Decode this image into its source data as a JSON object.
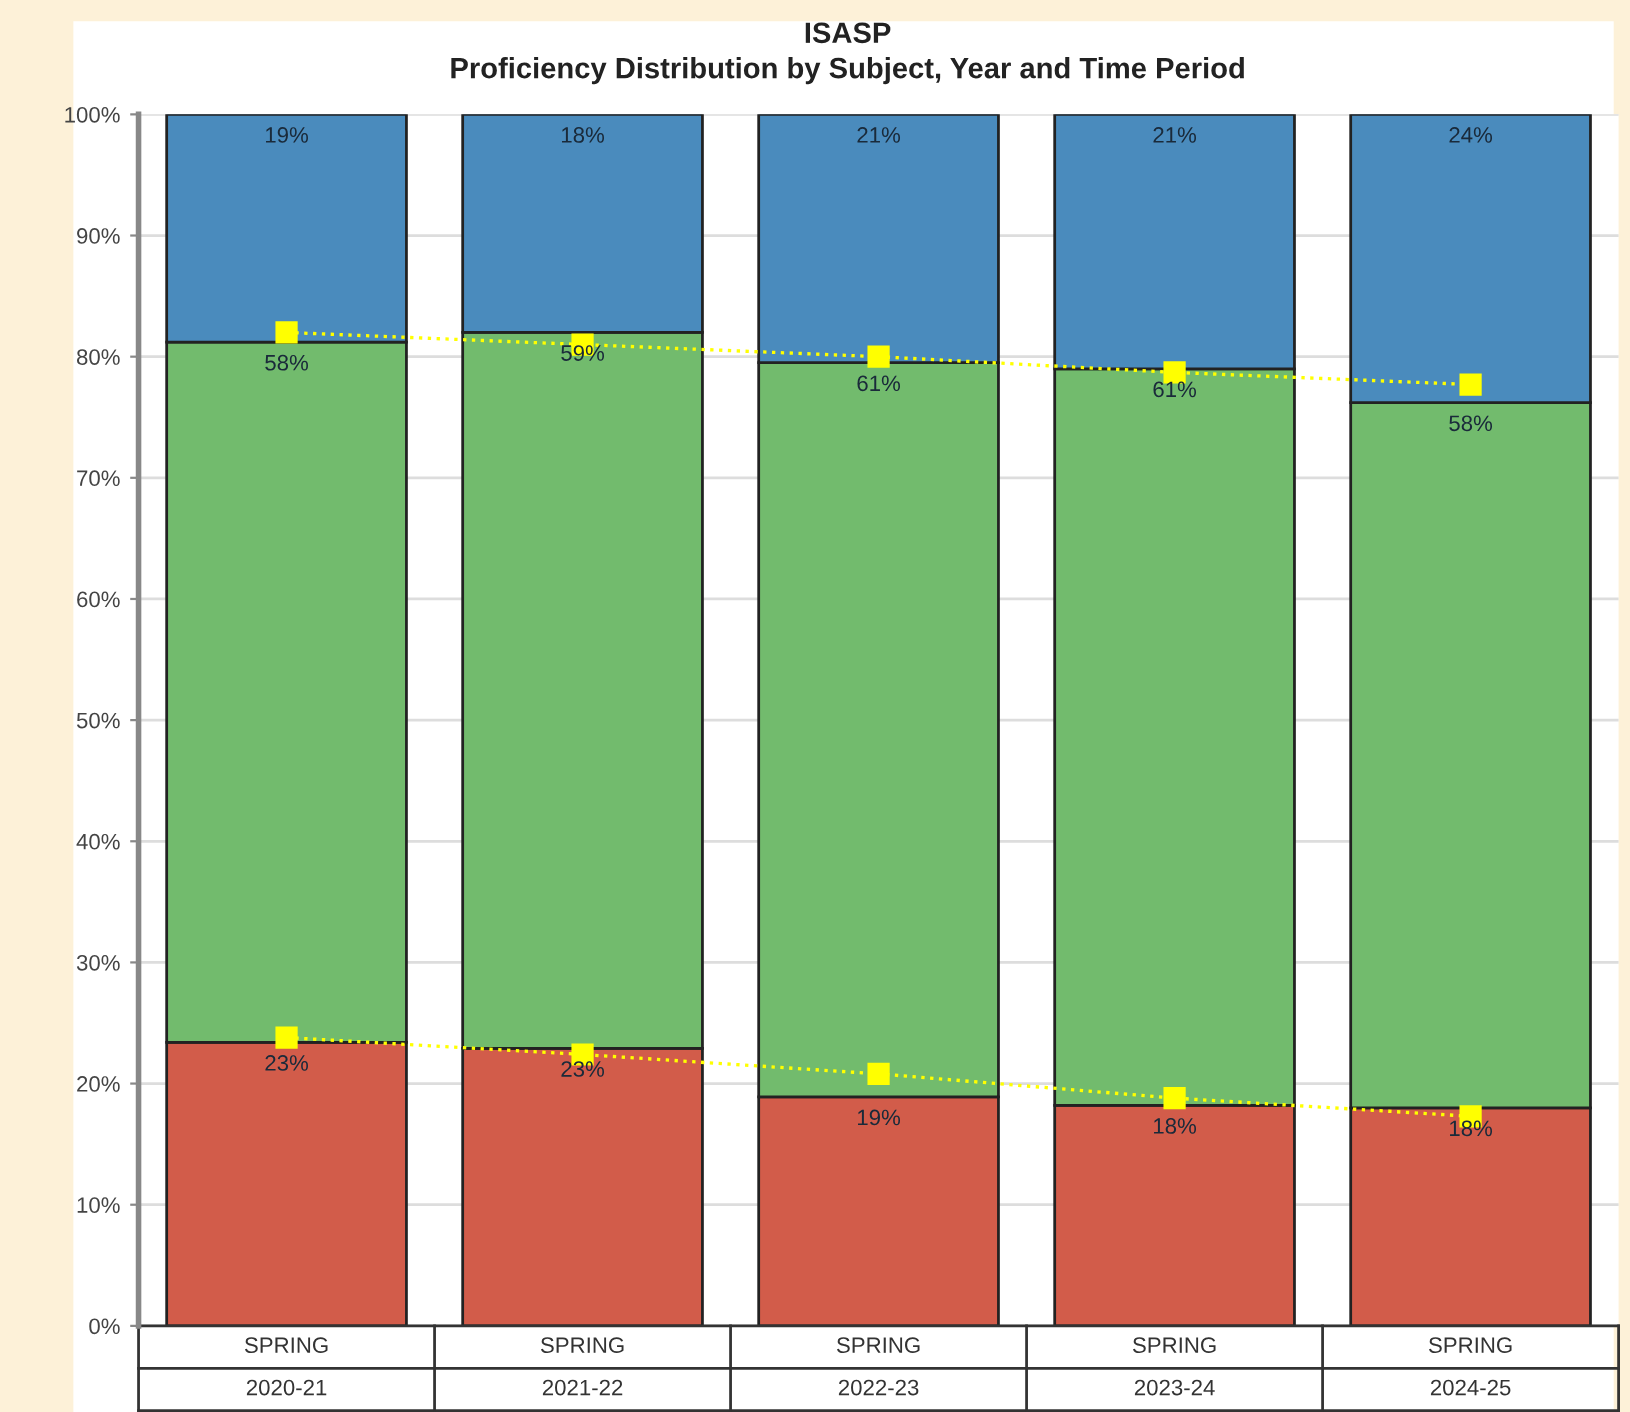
{
  "chart_data": {
    "type": "bar",
    "title": "ISASP",
    "subtitle": "Proficiency Distribution by Subject, Year and Time Period",
    "categories": [
      "SPRING\n2020-21",
      "SPRING\n2021-22",
      "SPRING\n2022-23",
      "SPRING\n2023-24",
      "SPRING\n2024-25"
    ],
    "stacked": true,
    "series": [
      {
        "color": "#d25c4a",
        "values": [
          23.4,
          22.9,
          18.9,
          18.2,
          18.0
        ],
        "value_labels": [
          "23%",
          "23%",
          "19%",
          "18%",
          "18%"
        ]
      },
      {
        "color": "#72bb6d",
        "values": [
          57.8,
          59.1,
          60.6,
          60.8,
          58.2
        ],
        "value_labels": [
          "58%",
          "59%",
          "61%",
          "61%",
          "58%"
        ]
      },
      {
        "color": "#4a8bbd",
        "values": [
          18.8,
          18.0,
          20.5,
          21.0,
          23.8
        ],
        "value_labels": [
          "19%",
          "18%",
          "21%",
          "21%",
          "24%"
        ]
      },
      {
        "type": "line",
        "color": "#ffff00",
        "marker": "square",
        "line_style": "dotted",
        "values": [
          82.0,
          81.0,
          80.0,
          78.7,
          77.7
        ]
      },
      {
        "type": "line",
        "color": "#ffff00",
        "marker": "square",
        "line_style": "dotted",
        "values": [
          23.8,
          22.4,
          20.8,
          18.8,
          17.3
        ]
      }
    ],
    "ylim": [
      0,
      100
    ],
    "yticks": [
      {
        "value": 0,
        "label": "0%"
      },
      {
        "value": 10,
        "label": "10%"
      },
      {
        "value": 20,
        "label": "20%"
      },
      {
        "value": 30,
        "label": "30%"
      },
      {
        "value": 40,
        "label": "40%"
      },
      {
        "value": 50,
        "label": "50%"
      },
      {
        "value": 60,
        "label": "60%"
      },
      {
        "value": 70,
        "label": "70%"
      },
      {
        "value": 80,
        "label": "80%"
      },
      {
        "value": 90,
        "label": "90%"
      },
      {
        "value": 100,
        "label": "100%"
      }
    ],
    "grid": "y",
    "legend": false
  }
}
